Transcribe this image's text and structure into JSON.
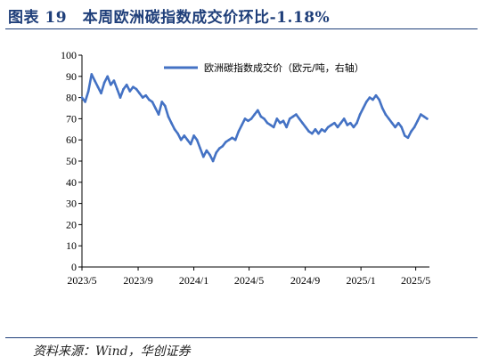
{
  "figure": {
    "title": "图表 19　本周欧洲碳指数成交价环比-1.18%",
    "source": "资料来源：Wind，华创证券"
  },
  "chart_data": {
    "type": "line",
    "title": "",
    "xlabel": "",
    "ylabel": "",
    "ylim": [
      0,
      100
    ],
    "yticks": [
      "0",
      "10",
      "20",
      "30",
      "40",
      "50",
      "60",
      "70",
      "80",
      "90",
      "100"
    ],
    "xlim": [
      "2023-05-01",
      "2025-05-31"
    ],
    "xticks": [
      {
        "label": "2023/5",
        "date": "2023-05-01"
      },
      {
        "label": "2023/9",
        "date": "2023-09-01"
      },
      {
        "label": "2024/1",
        "date": "2024-01-01"
      },
      {
        "label": "2024/5",
        "date": "2024-05-01"
      },
      {
        "label": "2024/9",
        "date": "2024-09-01"
      },
      {
        "label": "2025/1",
        "date": "2025-01-01"
      },
      {
        "label": "2025/5",
        "date": "2025-05-01"
      }
    ],
    "grid": false,
    "legend_position": "top-right",
    "line_color": "#4472c4",
    "series": [
      {
        "name": "欧洲碳指数成交价（欧元/吨，右轴）",
        "points": [
          [
            "2023-05-01",
            80
          ],
          [
            "2023-05-08",
            78
          ],
          [
            "2023-05-15",
            83
          ],
          [
            "2023-05-22",
            91
          ],
          [
            "2023-05-29",
            88
          ],
          [
            "2023-06-05",
            85
          ],
          [
            "2023-06-12",
            82
          ],
          [
            "2023-06-19",
            87
          ],
          [
            "2023-06-26",
            90
          ],
          [
            "2023-07-03",
            86
          ],
          [
            "2023-07-10",
            88
          ],
          [
            "2023-07-17",
            84
          ],
          [
            "2023-07-24",
            80
          ],
          [
            "2023-07-31",
            84
          ],
          [
            "2023-08-07",
            86
          ],
          [
            "2023-08-14",
            83
          ],
          [
            "2023-08-21",
            85
          ],
          [
            "2023-08-28",
            84
          ],
          [
            "2023-09-04",
            82
          ],
          [
            "2023-09-11",
            80
          ],
          [
            "2023-09-18",
            81
          ],
          [
            "2023-09-25",
            79
          ],
          [
            "2023-10-02",
            78
          ],
          [
            "2023-10-09",
            75
          ],
          [
            "2023-10-16",
            72
          ],
          [
            "2023-10-23",
            78
          ],
          [
            "2023-10-30",
            76
          ],
          [
            "2023-11-06",
            71
          ],
          [
            "2023-11-13",
            68
          ],
          [
            "2023-11-20",
            65
          ],
          [
            "2023-11-27",
            63
          ],
          [
            "2023-12-04",
            60
          ],
          [
            "2023-12-11",
            62
          ],
          [
            "2023-12-18",
            60
          ],
          [
            "2023-12-25",
            58
          ],
          [
            "2024-01-01",
            62
          ],
          [
            "2024-01-08",
            60
          ],
          [
            "2024-01-15",
            56
          ],
          [
            "2024-01-22",
            52
          ],
          [
            "2024-01-29",
            55
          ],
          [
            "2024-02-05",
            53
          ],
          [
            "2024-02-12",
            50
          ],
          [
            "2024-02-19",
            54
          ],
          [
            "2024-02-26",
            56
          ],
          [
            "2024-03-04",
            57
          ],
          [
            "2024-03-11",
            59
          ],
          [
            "2024-03-18",
            60
          ],
          [
            "2024-03-25",
            61
          ],
          [
            "2024-04-01",
            60
          ],
          [
            "2024-04-08",
            64
          ],
          [
            "2024-04-15",
            67
          ],
          [
            "2024-04-22",
            70
          ],
          [
            "2024-04-29",
            69
          ],
          [
            "2024-05-06",
            70
          ],
          [
            "2024-05-13",
            72
          ],
          [
            "2024-05-20",
            74
          ],
          [
            "2024-05-27",
            71
          ],
          [
            "2024-06-03",
            70
          ],
          [
            "2024-06-10",
            68
          ],
          [
            "2024-06-17",
            67
          ],
          [
            "2024-06-24",
            66
          ],
          [
            "2024-07-01",
            70
          ],
          [
            "2024-07-08",
            68
          ],
          [
            "2024-07-15",
            69
          ],
          [
            "2024-07-22",
            66
          ],
          [
            "2024-07-29",
            70
          ],
          [
            "2024-08-05",
            71
          ],
          [
            "2024-08-12",
            72
          ],
          [
            "2024-08-19",
            70
          ],
          [
            "2024-08-26",
            68
          ],
          [
            "2024-09-02",
            66
          ],
          [
            "2024-09-09",
            64
          ],
          [
            "2024-09-16",
            63
          ],
          [
            "2024-09-23",
            65
          ],
          [
            "2024-09-30",
            63
          ],
          [
            "2024-10-07",
            65
          ],
          [
            "2024-10-14",
            64
          ],
          [
            "2024-10-21",
            66
          ],
          [
            "2024-10-28",
            67
          ],
          [
            "2024-11-04",
            68
          ],
          [
            "2024-11-11",
            66
          ],
          [
            "2024-11-18",
            68
          ],
          [
            "2024-11-25",
            70
          ],
          [
            "2024-12-02",
            67
          ],
          [
            "2024-12-09",
            68
          ],
          [
            "2024-12-16",
            66
          ],
          [
            "2024-12-23",
            68
          ],
          [
            "2024-12-30",
            72
          ],
          [
            "2025-01-06",
            75
          ],
          [
            "2025-01-13",
            78
          ],
          [
            "2025-01-20",
            80
          ],
          [
            "2025-01-27",
            79
          ],
          [
            "2025-02-03",
            81
          ],
          [
            "2025-02-10",
            79
          ],
          [
            "2025-02-17",
            75
          ],
          [
            "2025-02-24",
            72
          ],
          [
            "2025-03-03",
            70
          ],
          [
            "2025-03-10",
            68
          ],
          [
            "2025-03-17",
            66
          ],
          [
            "2025-03-24",
            68
          ],
          [
            "2025-03-31",
            66
          ],
          [
            "2025-04-07",
            62
          ],
          [
            "2025-04-14",
            61
          ],
          [
            "2025-04-21",
            64
          ],
          [
            "2025-04-28",
            66
          ],
          [
            "2025-05-05",
            69
          ],
          [
            "2025-05-12",
            72
          ],
          [
            "2025-05-19",
            71
          ],
          [
            "2025-05-26",
            70
          ]
        ]
      }
    ]
  }
}
